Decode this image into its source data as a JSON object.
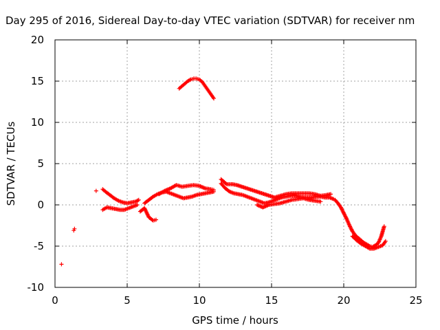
{
  "chart_data": {
    "type": "scatter",
    "title": "Day 295 of 2016, Sidereal Day-to-day VTEC variation (SDTVAR) for receiver nm",
    "xlabel": "GPS time / hours",
    "ylabel": "SDTVAR / TECUs",
    "xlim": [
      0,
      25
    ],
    "ylim": [
      -10,
      20
    ],
    "x_ticks": [
      0,
      5,
      10,
      15,
      20,
      25
    ],
    "x_tick_labels": [
      "0",
      "5",
      "10",
      "15",
      "20",
      "25"
    ],
    "y_ticks": [
      -10,
      -5,
      0,
      5,
      10,
      15,
      20
    ],
    "y_tick_labels": [
      "-10",
      "-5",
      "0",
      "5",
      "10",
      "15",
      "20"
    ],
    "grid": true,
    "marker": "+",
    "color": "#ff0000",
    "series": [
      {
        "name": "isolated points",
        "x": [
          0.45,
          1.3,
          1.35,
          2.85
        ],
        "y": [
          -7.2,
          -3.1,
          -2.9,
          1.7
        ]
      },
      {
        "name": "arc high",
        "x": [
          8.6,
          8.8,
          9.0,
          9.2,
          9.4,
          9.6,
          9.8,
          10.0,
          10.2,
          10.4,
          10.6,
          10.8,
          11.0
        ],
        "y": [
          14.1,
          14.4,
          14.7,
          15.0,
          15.2,
          15.3,
          15.3,
          15.2,
          14.9,
          14.4,
          13.9,
          13.4,
          12.9
        ]
      },
      {
        "name": "segment a upper",
        "x": [
          3.3,
          3.5,
          3.8,
          4.1,
          4.4,
          4.7,
          5.0,
          5.3,
          5.6,
          5.8
        ],
        "y": [
          1.9,
          1.6,
          1.2,
          0.8,
          0.5,
          0.3,
          0.2,
          0.3,
          0.4,
          0.6
        ]
      },
      {
        "name": "segment a lower",
        "x": [
          3.3,
          3.6,
          3.9,
          4.2,
          4.5,
          4.8,
          5.1,
          5.4,
          5.7
        ],
        "y": [
          -0.6,
          -0.3,
          -0.4,
          -0.5,
          -0.6,
          -0.6,
          -0.4,
          -0.2,
          0.0
        ]
      },
      {
        "name": "segment b",
        "x": [
          6.2,
          6.5,
          6.8,
          7.1,
          7.4,
          7.7,
          8.0,
          8.3,
          8.6,
          8.9,
          9.2,
          9.5,
          9.8,
          10.1,
          10.4,
          10.7,
          11.0
        ],
        "y": [
          0.2,
          0.6,
          1.0,
          1.3,
          1.5,
          1.6,
          1.4,
          1.2,
          1.0,
          0.8,
          0.9,
          1.0,
          1.2,
          1.3,
          1.4,
          1.5,
          1.6
        ]
      },
      {
        "name": "segment b upper",
        "x": [
          7.2,
          7.6,
          8.0,
          8.4,
          8.8,
          9.2,
          9.6,
          10.0,
          10.4,
          10.8,
          11.0
        ],
        "y": [
          1.3,
          1.7,
          2.0,
          2.4,
          2.2,
          2.3,
          2.4,
          2.3,
          2.0,
          1.9,
          1.8
        ]
      },
      {
        "name": "segment b lower",
        "x": [
          5.9,
          6.2,
          6.5,
          6.8,
          7.0
        ],
        "y": [
          -0.8,
          -0.4,
          -1.5,
          -1.9,
          -1.8
        ]
      },
      {
        "name": "segment c",
        "x": [
          11.5,
          11.8,
          12.1,
          12.4,
          12.7,
          13.0,
          13.3,
          13.6,
          13.9,
          14.2,
          14.5,
          14.8,
          15.1,
          15.4,
          15.7,
          16.0,
          16.3,
          16.6,
          16.9,
          17.2,
          17.5,
          17.8,
          18.1,
          18.4,
          18.7,
          19.0,
          19.3
        ],
        "y": [
          2.6,
          2.0,
          1.6,
          1.4,
          1.3,
          1.2,
          1.0,
          0.8,
          0.6,
          0.4,
          0.2,
          0.3,
          0.5,
          0.7,
          0.9,
          1.0,
          1.1,
          1.1,
          1.0,
          0.9,
          0.9,
          0.9,
          1.0,
          1.0,
          0.9,
          0.9,
          0.7
        ]
      },
      {
        "name": "segment c upper",
        "x": [
          11.5,
          11.9,
          12.3,
          12.6,
          15.2,
          15.6,
          16.0,
          16.4,
          16.8,
          17.2,
          17.6,
          18.0,
          18.4,
          18.8,
          19.1
        ],
        "y": [
          3.1,
          2.5,
          2.5,
          2.4,
          0.9,
          1.1,
          1.3,
          1.4,
          1.4,
          1.4,
          1.4,
          1.3,
          1.1,
          1.2,
          1.3
        ]
      },
      {
        "name": "segment c lower",
        "x": [
          14.0,
          14.4,
          14.8,
          15.2,
          15.6,
          16.0,
          16.4,
          16.8,
          17.2,
          17.6,
          18.0,
          18.4
        ],
        "y": [
          0.0,
          -0.3,
          0.0,
          0.1,
          0.2,
          0.4,
          0.6,
          0.7,
          0.8,
          0.6,
          0.5,
          0.4
        ]
      },
      {
        "name": "segment d",
        "x": [
          19.4,
          19.6,
          19.8,
          20.0,
          20.2,
          20.4,
          20.6,
          20.8,
          21.0,
          21.2,
          21.4,
          21.6,
          21.8,
          22.0,
          22.2,
          22.4,
          22.6,
          22.8
        ],
        "y": [
          0.6,
          0.2,
          -0.3,
          -1.0,
          -1.7,
          -2.5,
          -3.2,
          -3.7,
          -4.0,
          -4.3,
          -4.6,
          -4.8,
          -5.0,
          -5.1,
          -4.9,
          -4.6,
          -3.8,
          -2.6
        ]
      },
      {
        "name": "segment d lower",
        "x": [
          20.6,
          20.9,
          21.2,
          21.5,
          21.8,
          22.1,
          22.4,
          22.7,
          22.9
        ],
        "y": [
          -3.8,
          -4.3,
          -4.7,
          -5.0,
          -5.3,
          -5.3,
          -5.1,
          -4.9,
          -4.4
        ]
      }
    ]
  }
}
